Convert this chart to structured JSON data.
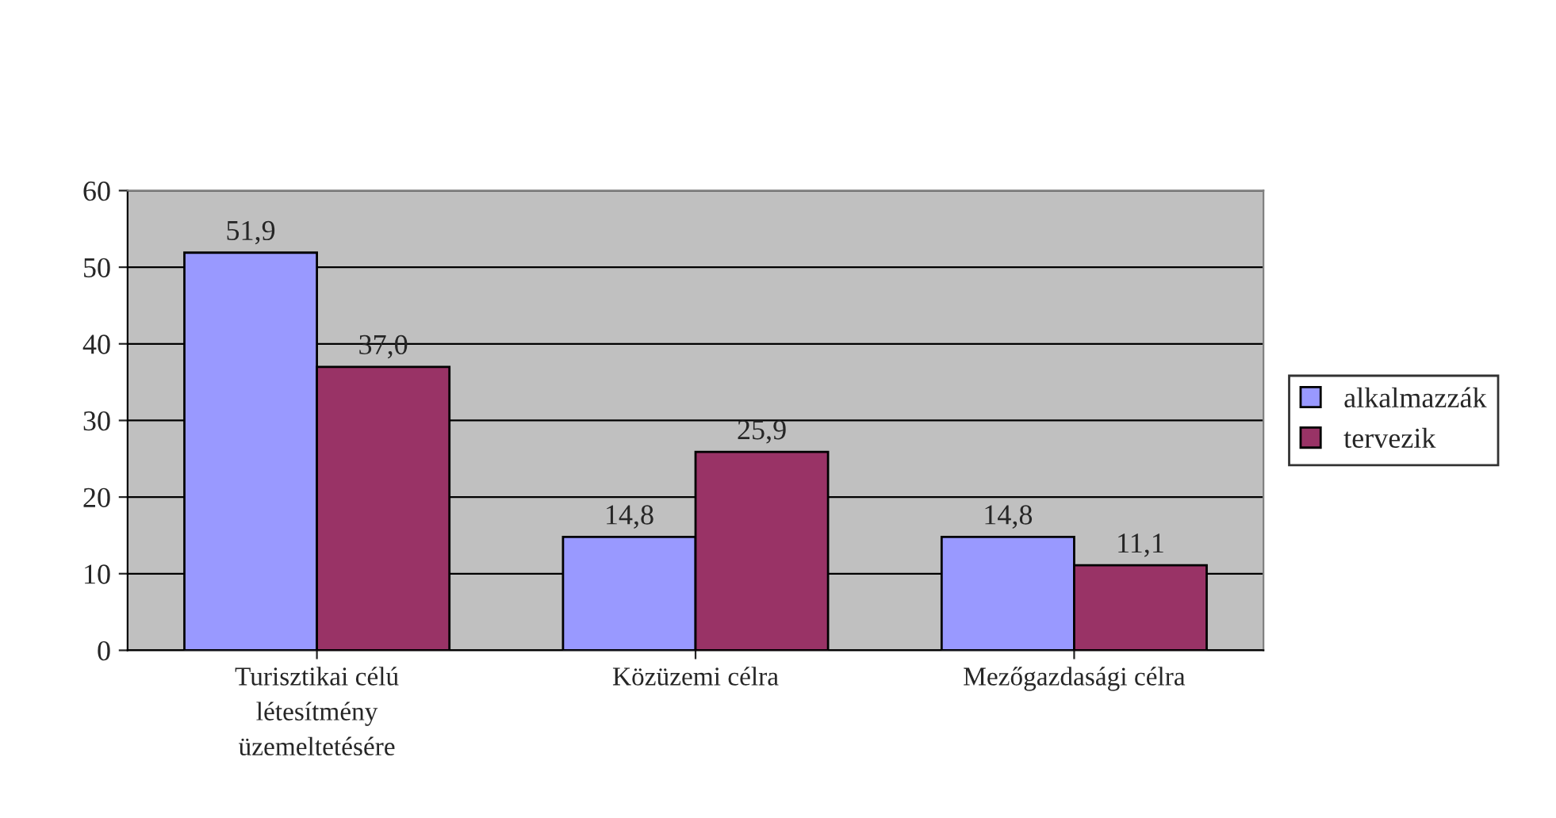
{
  "chart_data": {
    "type": "bar",
    "categories": [
      "Turisztikai célú\nlétesítmény\nüzemeltetésére",
      "Közüzemi célra",
      "Mezőgazdasági célra"
    ],
    "series": [
      {
        "name": "alkalmazzák",
        "color": "#9999ff",
        "values": [
          51.9,
          14.8,
          14.8
        ],
        "value_labels": [
          "51,9",
          "14,8",
          "14,8"
        ]
      },
      {
        "name": "tervezik",
        "color": "#993366",
        "values": [
          37.0,
          25.9,
          11.1
        ],
        "value_labels": [
          "37,0",
          "25,9",
          "11,1"
        ]
      }
    ],
    "ylim": [
      0,
      60
    ],
    "yticks": [
      0,
      10,
      20,
      30,
      40,
      50,
      60
    ],
    "grid": "y",
    "legend": "right"
  }
}
